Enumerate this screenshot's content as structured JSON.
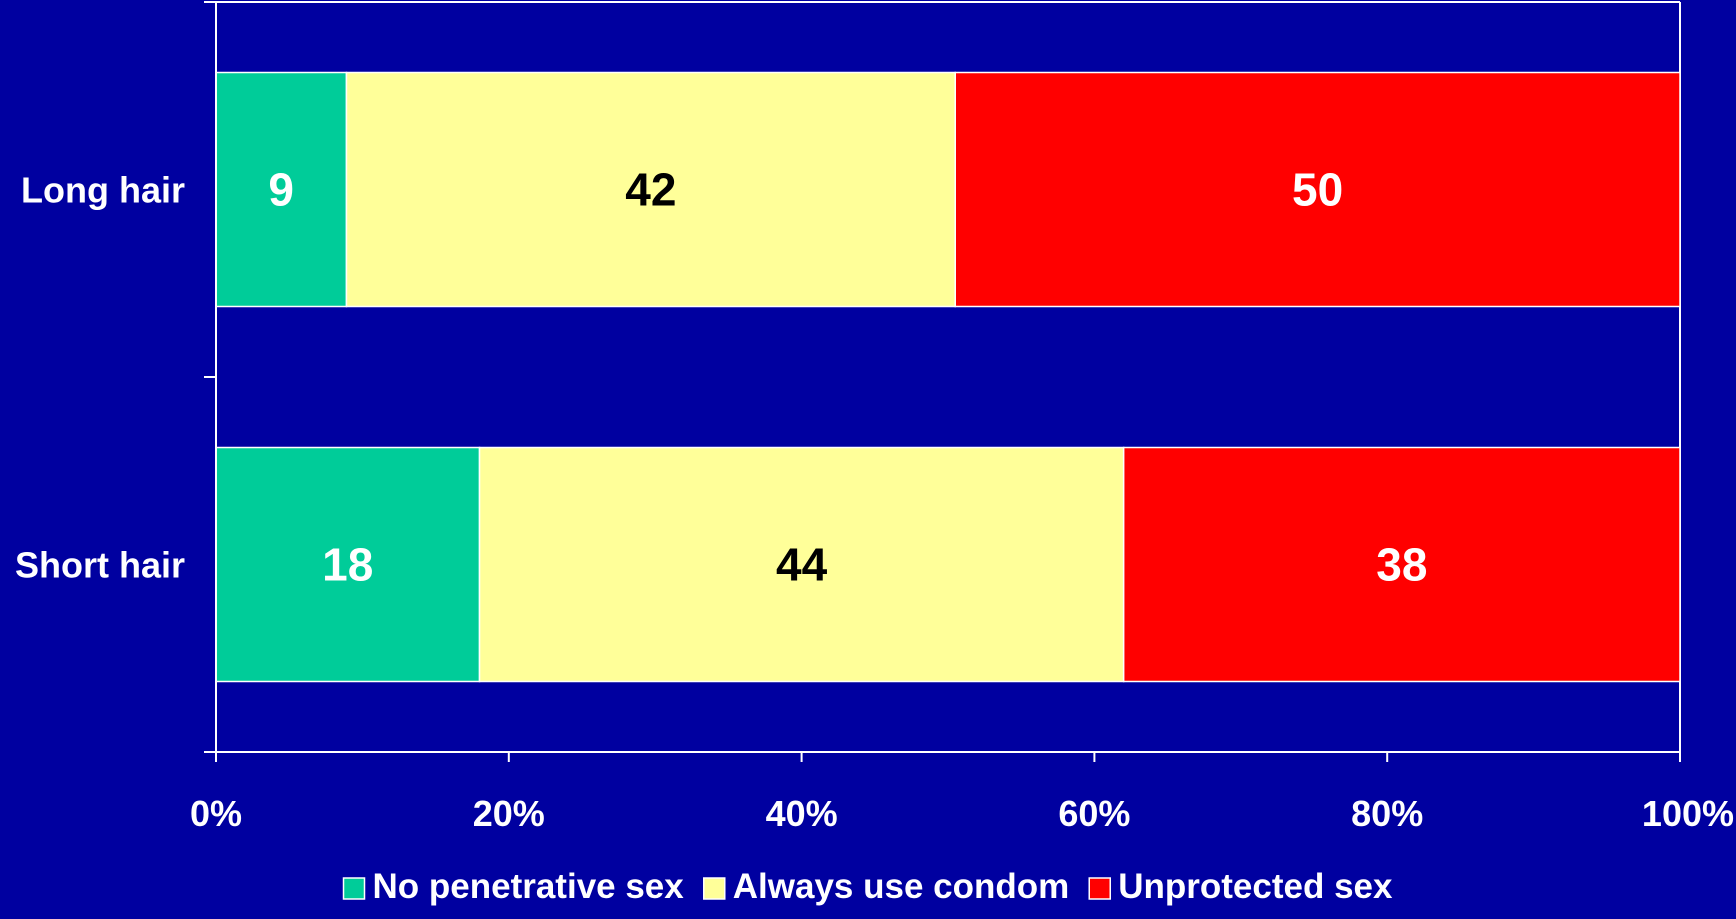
{
  "chart_data": {
    "type": "bar",
    "orientation": "horizontal",
    "stacked": true,
    "normalized_percent": true,
    "categories": [
      "Long hair",
      "Short hair"
    ],
    "series": [
      {
        "name": "No penetrative sex",
        "values": [
          9,
          18
        ],
        "color": "#00cc99"
      },
      {
        "name": "Always use condom",
        "values": [
          42,
          44
        ],
        "color": "#ffff99"
      },
      {
        "name": "Unprotected sex",
        "values": [
          50,
          38
        ],
        "color": "#ff0000"
      }
    ],
    "data_label_colors": [
      "#ffffff",
      "#000000",
      "#ffffff"
    ],
    "xlim": [
      0,
      100
    ],
    "x_ticks": [
      "0%",
      "20%",
      "40%",
      "60%",
      "80%",
      "100%"
    ],
    "title": "",
    "xlabel": "",
    "ylabel": "",
    "grid": false,
    "legend_placement": "bottom",
    "background_color": "#0000a0",
    "axis_color": "#ffffff"
  }
}
